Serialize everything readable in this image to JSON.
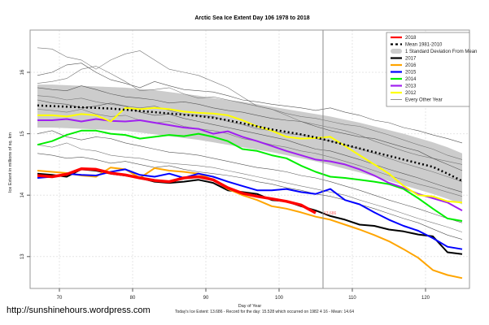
{
  "chart_data": {
    "type": "line",
    "title": "Arctic Sea Ice Extent Day 106 1978 to 2018",
    "xlabel": "Day of Year",
    "ylabel": "Ice Extent in millions of sq. km",
    "xlim": [
      66,
      126
    ],
    "ylim": [
      12.45,
      16.7
    ],
    "xticks": [
      70,
      80,
      90,
      100,
      110,
      120
    ],
    "yticks": [
      13,
      14,
      15,
      16
    ],
    "current_day": 106,
    "current_value_label": "13.686",
    "grid": true,
    "legend_position": "top-right",
    "legend": [
      {
        "label": "2018",
        "color": "#ff0000",
        "style": "thick"
      },
      {
        "label": "Mean 1981-2010",
        "color": "#000000",
        "style": "dotted"
      },
      {
        "label": "1 Standard Deviation From Mean",
        "color": "#cccccc",
        "style": "band"
      },
      {
        "label": "2017",
        "color": "#000000",
        "style": "solid"
      },
      {
        "label": "2016",
        "color": "#ffa500",
        "style": "solid"
      },
      {
        "label": "2015",
        "color": "#0000ff",
        "style": "solid"
      },
      {
        "label": "2014",
        "color": "#00ee00",
        "style": "solid"
      },
      {
        "label": "2013",
        "color": "#a020f0",
        "style": "solid"
      },
      {
        "label": "2012",
        "color": "#ffff00",
        "style": "solid"
      },
      {
        "label": "Every Other Year",
        "color": "#777777",
        "style": "thin"
      }
    ],
    "x": [
      67,
      69,
      71,
      73,
      75,
      77,
      79,
      81,
      83,
      85,
      87,
      89,
      91,
      93,
      95,
      97,
      99,
      101,
      103,
      105,
      107,
      109,
      111,
      113,
      115,
      117,
      119,
      121,
      123,
      125
    ],
    "band": {
      "upper": [
        15.8,
        15.8,
        15.79,
        15.78,
        15.77,
        15.76,
        15.75,
        15.73,
        15.71,
        15.68,
        15.65,
        15.62,
        15.58,
        15.55,
        15.52,
        15.48,
        15.44,
        15.4,
        15.36,
        15.32,
        15.28,
        15.23,
        15.18,
        15.12,
        15.06,
        15.0,
        14.93,
        14.86,
        14.78,
        14.68
      ],
      "lower": [
        15.1,
        15.1,
        15.09,
        15.08,
        15.07,
        15.06,
        15.05,
        15.02,
        14.99,
        14.96,
        14.93,
        14.9,
        14.86,
        14.82,
        14.78,
        14.74,
        14.7,
        14.65,
        14.6,
        14.55,
        14.49,
        14.43,
        14.37,
        14.3,
        14.23,
        14.16,
        14.09,
        14.02,
        13.94,
        13.85
      ]
    },
    "series": [
      {
        "name": "Mean 1981-2010",
        "values": [
          15.46,
          15.45,
          15.44,
          15.43,
          15.42,
          15.41,
          15.39,
          15.37,
          15.35,
          15.33,
          15.31,
          15.29,
          15.26,
          15.22,
          15.17,
          15.12,
          15.07,
          15.03,
          14.99,
          14.94,
          14.88,
          14.82,
          14.76,
          14.7,
          14.64,
          14.58,
          14.52,
          14.46,
          14.35,
          14.23
        ]
      },
      {
        "name": "2017",
        "values": [
          14.35,
          14.33,
          14.3,
          14.42,
          14.4,
          14.35,
          14.32,
          14.28,
          14.22,
          14.2,
          14.22,
          14.25,
          14.2,
          14.08,
          14.05,
          14.02,
          13.92,
          13.9,
          13.82,
          13.75,
          13.66,
          13.6,
          13.52,
          13.5,
          13.44,
          13.41,
          13.36,
          13.33,
          13.07,
          13.04
        ]
      },
      {
        "name": "2016",
        "values": [
          14.4,
          14.38,
          14.36,
          14.32,
          14.3,
          14.45,
          14.42,
          14.28,
          14.44,
          14.4,
          14.38,
          14.35,
          14.25,
          14.1,
          14.0,
          13.92,
          13.82,
          13.78,
          13.72,
          13.65,
          13.6,
          13.52,
          13.44,
          13.35,
          13.25,
          13.12,
          12.98,
          12.78,
          12.7,
          12.65
        ]
      },
      {
        "name": "2015",
        "values": [
          14.28,
          14.3,
          14.35,
          14.33,
          14.32,
          14.38,
          14.42,
          14.33,
          14.3,
          14.35,
          14.28,
          14.35,
          14.3,
          14.22,
          14.15,
          14.08,
          14.08,
          14.1,
          14.05,
          14.02,
          14.1,
          13.92,
          13.85,
          13.72,
          13.6,
          13.5,
          13.42,
          13.3,
          13.16,
          13.12
        ]
      },
      {
        "name": "2014",
        "values": [
          14.82,
          14.88,
          14.98,
          15.05,
          15.05,
          15.0,
          14.98,
          14.92,
          14.95,
          14.98,
          14.96,
          15.0,
          14.95,
          14.88,
          14.75,
          14.72,
          14.65,
          14.6,
          14.48,
          14.38,
          14.3,
          14.28,
          14.25,
          14.22,
          14.18,
          14.1,
          13.95,
          13.78,
          13.62,
          13.58
        ]
      },
      {
        "name": "2013",
        "values": [
          15.22,
          15.22,
          15.24,
          15.2,
          15.24,
          15.21,
          15.2,
          15.22,
          15.18,
          15.14,
          15.1,
          15.08,
          15.0,
          15.04,
          14.95,
          14.88,
          14.8,
          14.72,
          14.65,
          14.58,
          14.55,
          14.5,
          14.42,
          14.32,
          14.2,
          14.12,
          14.02,
          13.95,
          13.88,
          13.75
        ]
      },
      {
        "name": "2012",
        "values": [
          15.3,
          15.3,
          15.28,
          15.32,
          15.3,
          15.2,
          15.42,
          15.4,
          15.42,
          15.4,
          15.36,
          15.34,
          15.33,
          15.3,
          15.22,
          15.12,
          15.05,
          14.95,
          14.92,
          14.93,
          14.95,
          14.8,
          14.65,
          14.5,
          14.35,
          14.15,
          14.0,
          13.98,
          13.9,
          13.88
        ]
      },
      {
        "name": "2018",
        "values": [
          14.32,
          14.3,
          14.34,
          14.43,
          14.42,
          14.36,
          14.33,
          14.28,
          14.24,
          14.22,
          14.28,
          14.3,
          14.25,
          14.12,
          14.03,
          13.98,
          13.94,
          13.9,
          13.84,
          13.71
        ]
      }
    ],
    "other_years": [
      [
        16.4,
        16.38,
        16.25,
        16.2,
        16.05,
        16.2,
        16.3,
        16.35,
        16.2,
        16.05,
        16.0,
        15.95,
        15.85,
        15.75,
        15.6,
        15.45,
        15.4,
        15.3,
        15.2,
        15.15,
        15.1,
        15.05,
        14.98,
        14.88,
        14.8,
        14.72,
        14.65,
        14.6,
        14.55,
        14.5
      ],
      [
        15.95,
        16.0,
        16.12,
        16.15,
        16.0,
        15.88,
        15.82,
        15.75,
        15.85,
        15.78,
        15.72,
        15.7,
        15.68,
        15.62,
        15.55,
        15.52,
        15.48,
        15.45,
        15.42,
        15.38,
        15.42,
        15.35,
        15.3,
        15.22,
        15.18,
        15.1,
        15.05,
        14.98,
        14.92,
        14.85
      ],
      [
        15.82,
        15.85,
        15.9,
        16.05,
        16.1,
        15.98,
        15.85,
        15.7,
        15.72,
        15.75,
        15.65,
        15.58,
        15.6,
        15.55,
        15.5,
        15.45,
        15.4,
        15.33,
        15.28,
        15.25,
        15.2,
        15.15,
        15.12,
        15.05,
        14.98,
        14.9,
        14.82,
        14.75,
        14.65,
        14.58
      ],
      [
        15.75,
        15.72,
        15.7,
        15.78,
        15.72,
        15.65,
        15.6,
        15.58,
        15.55,
        15.5,
        15.52,
        15.48,
        15.42,
        15.38,
        15.35,
        15.3,
        15.25,
        15.22,
        15.2,
        15.12,
        15.05,
        15.0,
        14.95,
        14.92,
        14.85,
        14.78,
        14.72,
        14.6,
        14.5,
        14.4
      ],
      [
        15.62,
        15.6,
        15.55,
        15.58,
        15.52,
        15.48,
        15.45,
        15.42,
        15.45,
        15.38,
        15.32,
        15.3,
        15.28,
        15.2,
        15.15,
        15.08,
        15.05,
        15.0,
        14.98,
        14.92,
        14.88,
        14.82,
        14.75,
        14.68,
        14.6,
        14.52,
        14.45,
        14.38,
        14.3,
        14.22
      ],
      [
        15.55,
        15.5,
        15.48,
        15.42,
        15.45,
        15.5,
        15.45,
        15.35,
        15.3,
        15.32,
        15.25,
        15.2,
        15.15,
        15.1,
        15.05,
        15.0,
        14.95,
        14.9,
        14.82,
        14.75,
        14.72,
        14.65,
        14.58,
        14.5,
        14.42,
        14.35,
        14.28,
        14.2,
        14.12,
        14.05
      ],
      [
        15.4,
        15.38,
        15.35,
        15.4,
        15.32,
        15.28,
        15.3,
        15.22,
        15.18,
        15.2,
        15.12,
        15.08,
        15.05,
        15.0,
        14.92,
        14.88,
        14.82,
        14.78,
        14.72,
        14.68,
        14.62,
        14.55,
        14.48,
        14.4,
        14.32,
        14.25,
        14.18,
        14.12,
        14.05,
        13.98
      ],
      [
        15.0,
        15.05,
        14.95,
        14.9,
        14.95,
        14.92,
        14.85,
        14.8,
        14.75,
        14.7,
        14.68,
        14.65,
        14.6,
        14.55,
        14.5,
        14.45,
        14.42,
        14.38,
        14.32,
        14.28,
        14.22,
        14.15,
        14.08,
        14.0,
        13.92,
        13.85,
        13.78,
        13.7,
        13.62,
        13.55
      ],
      [
        14.82,
        14.78,
        14.85,
        14.75,
        14.72,
        14.65,
        14.62,
        14.6,
        14.55,
        14.52,
        14.5,
        14.48,
        14.45,
        14.4,
        14.35,
        14.3,
        14.25,
        14.2,
        14.15,
        14.1,
        14.05,
        14.0,
        13.92,
        13.85,
        13.78,
        13.7,
        13.62,
        13.55,
        13.48,
        13.4
      ],
      [
        14.68,
        14.65,
        14.6,
        14.62,
        14.58,
        14.52,
        14.55,
        14.5,
        14.45,
        14.48,
        14.42,
        14.38,
        14.35,
        14.32,
        14.28,
        14.22,
        14.18,
        14.12,
        14.08,
        14.02,
        13.98,
        13.92,
        13.85,
        13.78,
        13.7,
        13.62,
        13.55,
        13.45,
        13.35,
        13.28
      ]
    ]
  },
  "footer": {
    "url": "http://sunshinehours.wordpress.com",
    "stats": "Today's Ice Extent: 13.686  - Record for the day: 15.528 which occurred on 1982 4 16  - Mean: 14.64"
  }
}
